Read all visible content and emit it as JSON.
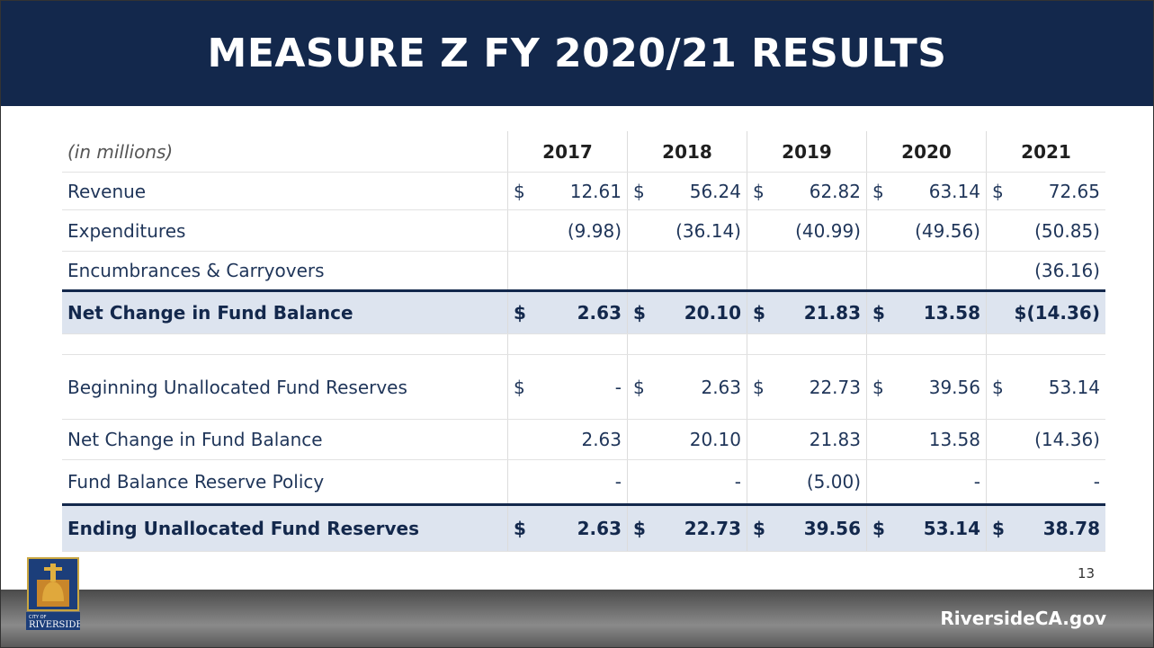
{
  "header": {
    "title": "MEASURE Z FY 2020/21 RESULTS"
  },
  "table": {
    "unit_note": "(in  millions)",
    "columns": [
      "2017",
      "2018",
      "2019",
      "2020",
      "2021"
    ],
    "rows": [
      {
        "label": "Revenue",
        "bold": false,
        "cells": [
          {
            "sign": "$",
            "amount": "12.61"
          },
          {
            "sign": "$",
            "amount": "56.24"
          },
          {
            "sign": "$",
            "amount": "62.82"
          },
          {
            "sign": "$",
            "amount": "63.14"
          },
          {
            "sign": "$",
            "amount": "72.65"
          }
        ]
      },
      {
        "label": "Expenditures",
        "bold": false,
        "cells": [
          {
            "amount": "(9.98)"
          },
          {
            "amount": "(36.14)"
          },
          {
            "amount": "(40.99)"
          },
          {
            "amount": "(49.56)"
          },
          {
            "amount": "(50.85)"
          }
        ]
      },
      {
        "label": "Encumbrances & Carryovers",
        "bold": false,
        "cells": [
          null,
          null,
          null,
          null,
          {
            "amount": "(36.16)"
          }
        ]
      },
      {
        "label": "Net Change in Fund Balance",
        "bold": true,
        "cells": [
          {
            "sign": "$",
            "amount": "2.63"
          },
          {
            "sign": "$",
            "amount": "20.10"
          },
          {
            "sign": "$",
            "amount": "21.83"
          },
          {
            "sign": "$",
            "amount": "13.58"
          },
          {
            "amount": "$(14.36)"
          }
        ]
      },
      {
        "label": null,
        "bold": false,
        "cells": [
          null,
          null,
          null,
          null,
          null
        ]
      },
      {
        "label": "Beginning Unallocated Fund Reserves",
        "bold": false,
        "cells": [
          {
            "sign": "$",
            "amount": "-"
          },
          {
            "sign": "$",
            "amount": "2.63"
          },
          {
            "sign": "$",
            "amount": "22.73"
          },
          {
            "sign": "$",
            "amount": "39.56"
          },
          {
            "sign": "$",
            "amount": "53.14"
          }
        ]
      },
      {
        "label": "Net Change in Fund Balance",
        "bold": false,
        "cells": [
          {
            "amount": "2.63"
          },
          {
            "amount": "20.10"
          },
          {
            "amount": "21.83"
          },
          {
            "amount": "13.58"
          },
          {
            "amount": "(14.36)"
          }
        ]
      },
      {
        "label": "Fund Balance Reserve Policy",
        "bold": false,
        "cells": [
          {
            "amount": "-"
          },
          {
            "amount": "-"
          },
          {
            "amount": "(5.00)"
          },
          {
            "amount": "-"
          },
          {
            "amount": "-"
          }
        ]
      },
      {
        "label": "Ending Unallocated Fund Reserves",
        "bold": true,
        "cells": [
          {
            "sign": "$",
            "amount": "2.63"
          },
          {
            "sign": "$",
            "amount": "22.73"
          },
          {
            "sign": "$",
            "amount": "39.56"
          },
          {
            "sign": "$",
            "amount": "53.14"
          },
          {
            "sign": "$",
            "amount": "38.78"
          }
        ]
      }
    ]
  },
  "footer": {
    "page_number": "13",
    "website": "RiversideCA.gov",
    "logo_small": "CITY OF",
    "logo_name": "RIVERSIDE"
  }
}
